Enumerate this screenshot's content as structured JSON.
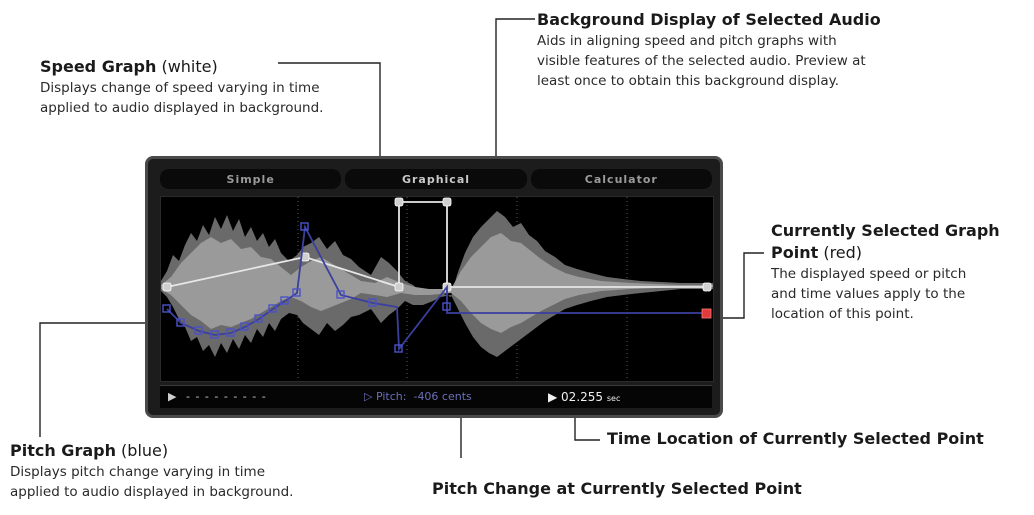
{
  "panel": {
    "tabs": [
      "Simple",
      "Graphical",
      "Calculator"
    ],
    "active_tab": "Graphical",
    "status": {
      "play_icon": "play-triangle",
      "dashes": "- - - - - - - - -",
      "pitch_prefix": "Pitch:",
      "pitch_value": "-406 cents",
      "time_value": "02.255",
      "time_unit": "sec"
    }
  },
  "annotations": {
    "speed": {
      "title_bold": "Speed Graph",
      "title_rest": " (white)",
      "desc1": "Displays change of speed varying in time",
      "desc2": "applied to audio displayed in background."
    },
    "background": {
      "title_bold": "Background Display of Selected Audio",
      "desc1": "Aids in aligning speed and pitch graphs with",
      "desc2": "visible features of the selected audio.  Preview at",
      "desc3": "least once to obtain this background display."
    },
    "selected_point": {
      "title_bold1": "Currently Selected Graph",
      "title_bold2": "Point",
      "title_rest": " (red)",
      "desc1": "The displayed speed or pitch",
      "desc2": "and time values apply to the",
      "desc3": "location of this point."
    },
    "pitch": {
      "title_bold": "Pitch Graph",
      "title_rest": " (blue)",
      "desc1": "Displays pitch change varying in time",
      "desc2": "applied to audio displayed in background."
    },
    "pitch_change": {
      "title": "Pitch Change at Currently Selected Point"
    },
    "time_location": {
      "title": "Time Location of Currently Selected Point"
    }
  },
  "colors": {
    "speed_graph": "#e6e6e6",
    "pitch_graph": "#3b3f9e",
    "selected_point": "#e03a3a",
    "waveform": "#7a7a7a"
  }
}
